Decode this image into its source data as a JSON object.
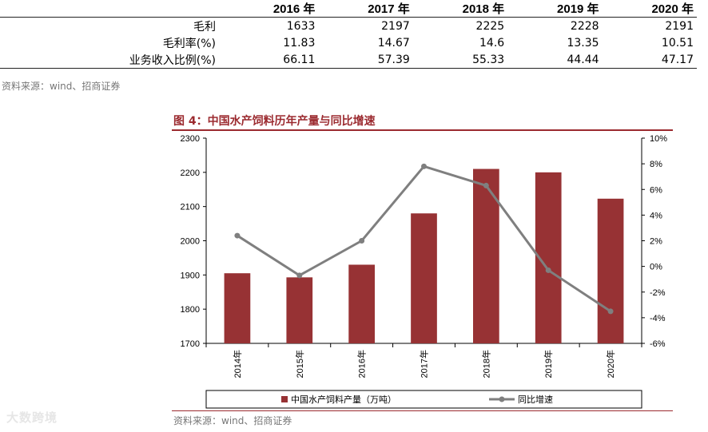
{
  "table": {
    "headers": [
      "",
      "2016 年",
      "2017 年",
      "2018 年",
      "2019 年",
      "2020 年"
    ],
    "rows": [
      {
        "label": "毛利",
        "values": [
          "1633",
          "2197",
          "2225",
          "2228",
          "2191"
        ]
      },
      {
        "label": "毛利率(%)",
        "values": [
          "11.83",
          "14.67",
          "14.6",
          "13.35",
          "10.51"
        ]
      },
      {
        "label": "业务收入比例(%)",
        "values": [
          "66.11",
          "57.39",
          "55.33",
          "44.44",
          "47.17"
        ]
      }
    ],
    "source": "资料来源：wind、招商证券"
  },
  "figure": {
    "title": "图 4：中国水产饲料历年产量与同比增速",
    "source": "资料来源：wind、招商证券"
  },
  "watermark": "大数跨境",
  "colors": {
    "bar": "#973234",
    "line": "#7f7f7f",
    "title": "#9b2a2f"
  },
  "chart_data": {
    "type": "bar+line",
    "title": "中国水产饲料历年产量与同比增速",
    "categories": [
      "2014年",
      "2015年",
      "2016年",
      "2017年",
      "2018年",
      "2019年",
      "2020年"
    ],
    "series": [
      {
        "name": "中国水产饲料产量（万吨）",
        "type": "bar",
        "axis": "left",
        "values": [
          1905,
          1893,
          1930,
          2080,
          2210,
          2200,
          2123
        ]
      },
      {
        "name": "同比增速",
        "type": "line",
        "axis": "right",
        "values": [
          2.4,
          -0.7,
          2.0,
          7.8,
          6.3,
          -0.3,
          -3.5
        ]
      }
    ],
    "ylim_left": [
      1700,
      2300
    ],
    "yticks_left": [
      "2300",
      "2200",
      "2100",
      "2000",
      "1900",
      "1800",
      "1700"
    ],
    "ylim_right": [
      -6,
      10
    ],
    "yticks_right": [
      "10%",
      "8%",
      "6%",
      "4%",
      "2%",
      "0%",
      "-2%",
      "-4%",
      "-6%"
    ],
    "legend": [
      "中国水产饲料产量（万吨）",
      "同比增速"
    ],
    "legend_position": "bottom"
  }
}
